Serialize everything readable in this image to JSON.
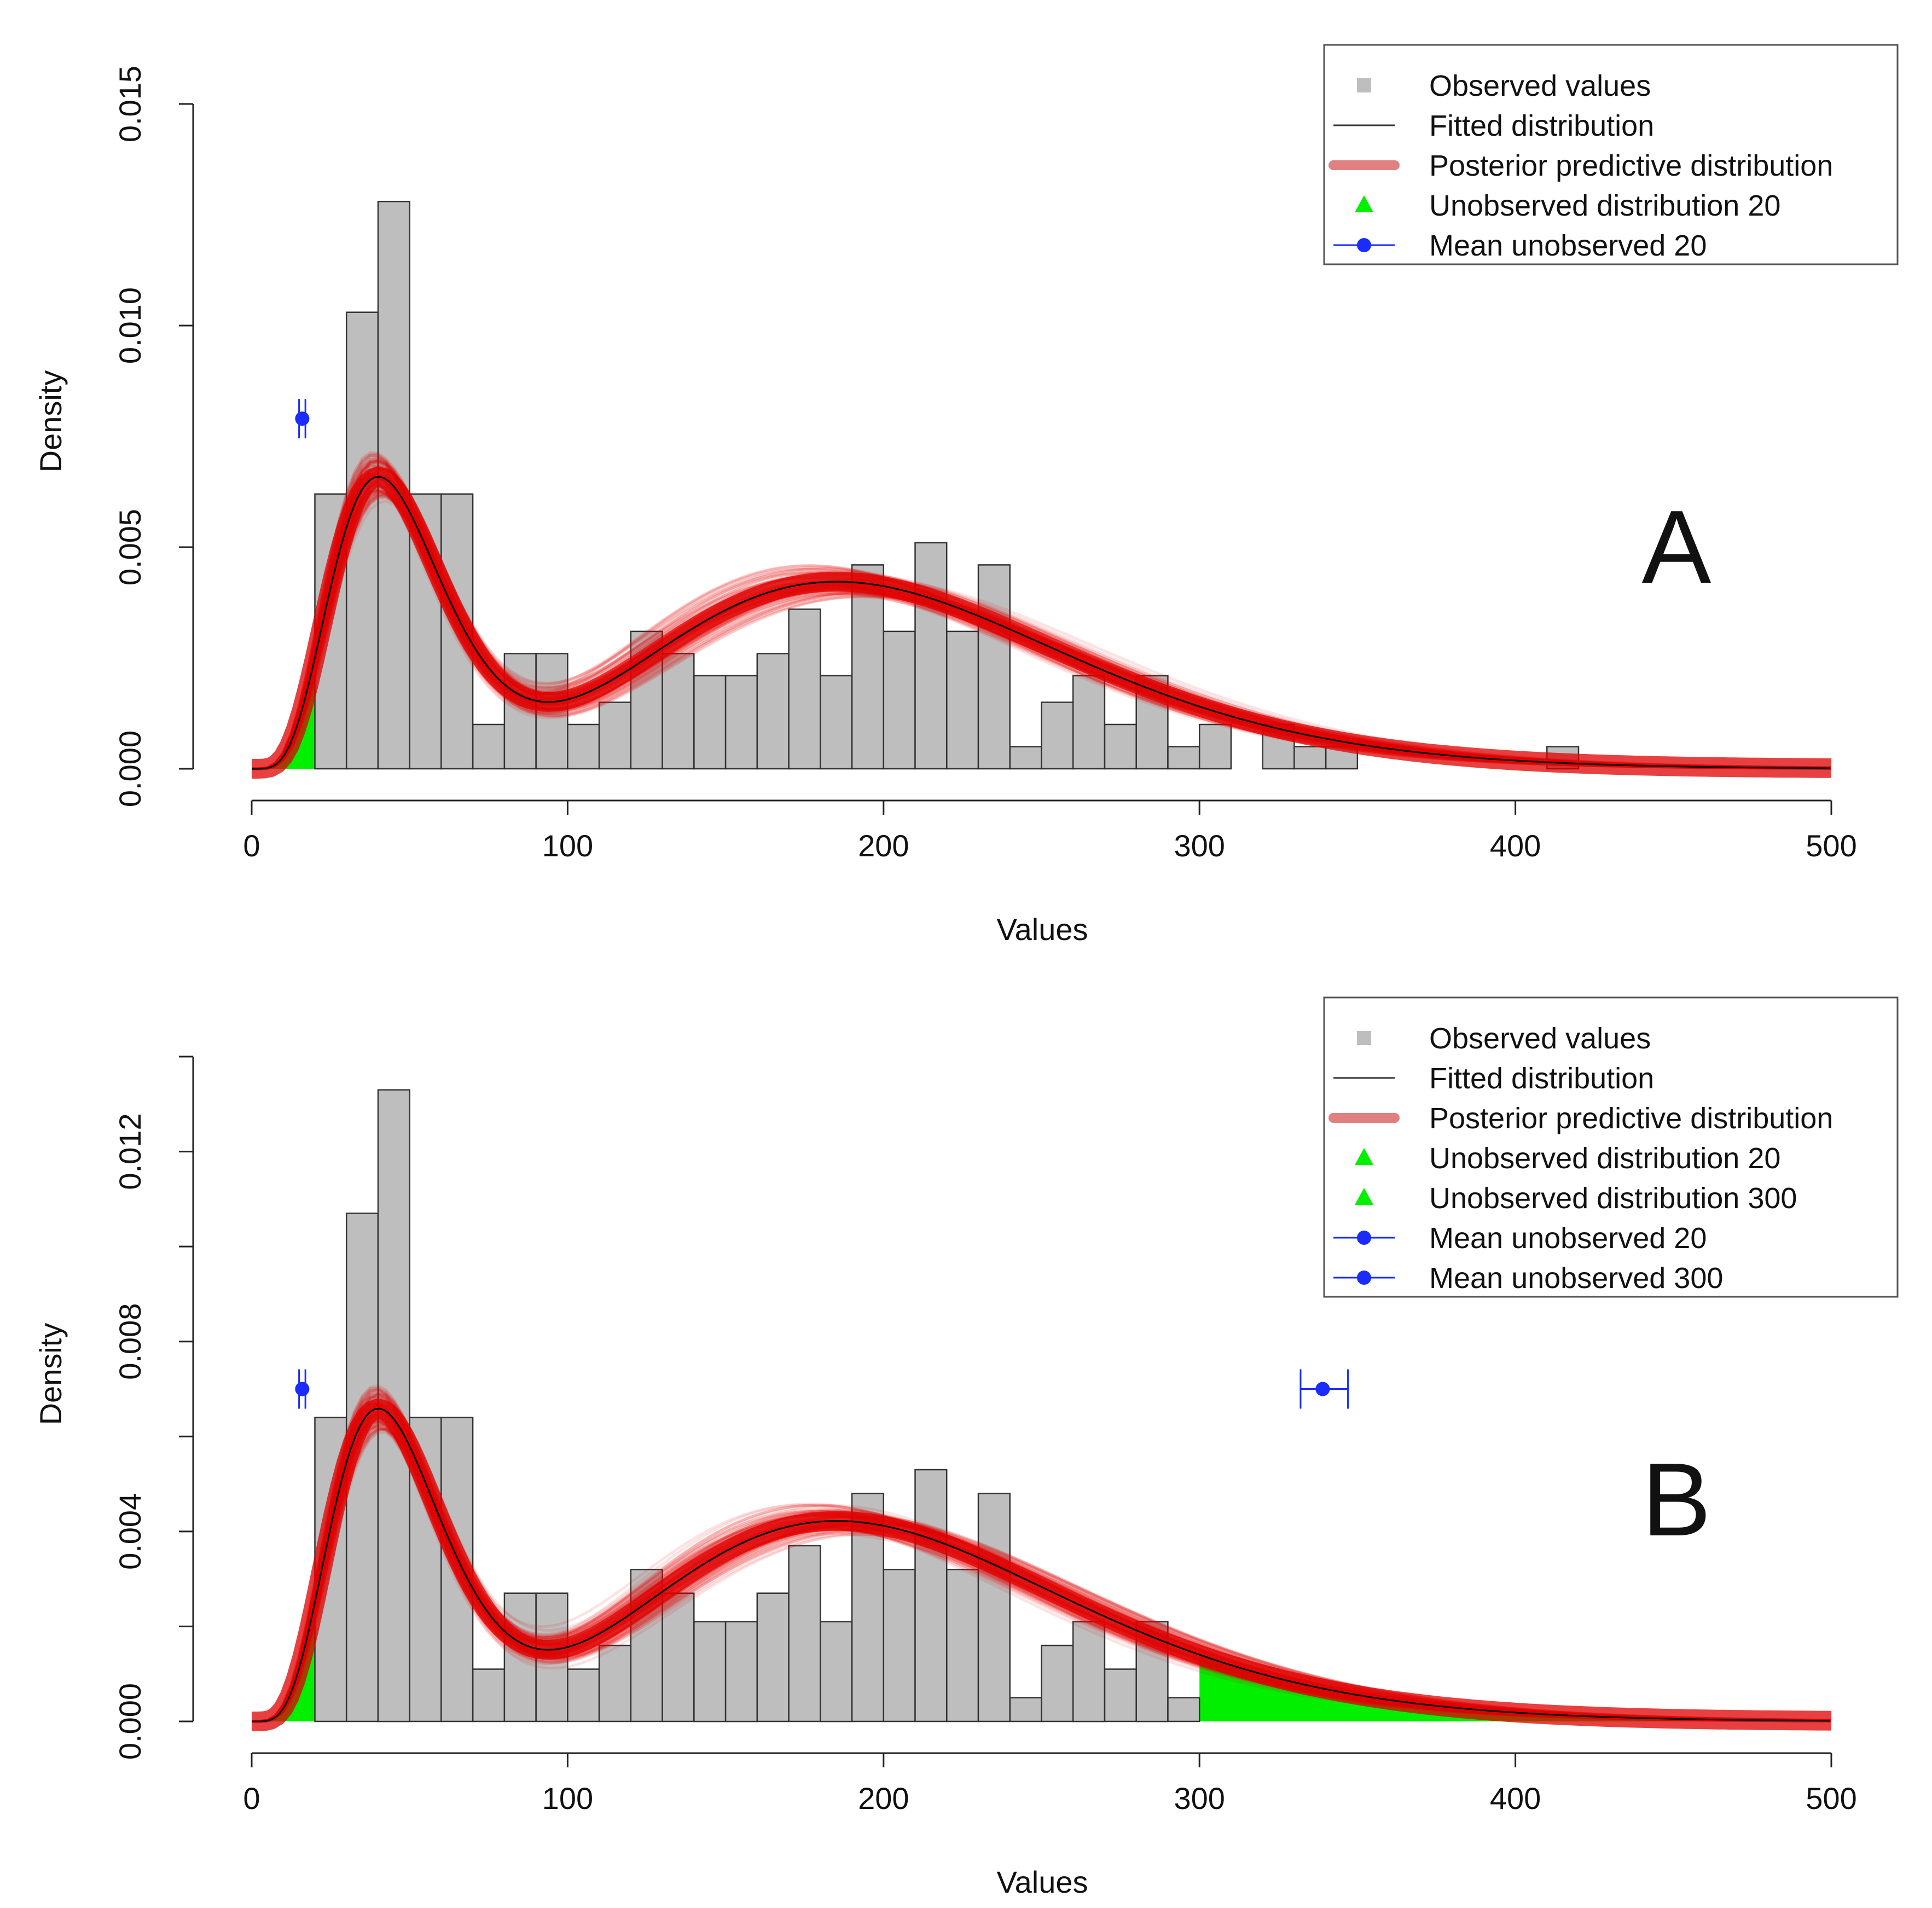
{
  "figure": {
    "colors": {
      "bar_fill": "#bebebe",
      "bar_edge": "#333333",
      "posterior": "#e00000",
      "fitted": "#000000",
      "unobserved": "#00f000",
      "mean_marker": "#1a2cff",
      "legend_posterior": "#e08080"
    },
    "panels": [
      {
        "label": "A",
        "legend": [
          {
            "label": "Observed values",
            "symbol": "square"
          },
          {
            "label": "Fitted distribution",
            "symbol": "thin-line"
          },
          {
            "label": "Posterior predictive distribution",
            "symbol": "thick-line"
          },
          {
            "label": "Unobserved distribution 20",
            "symbol": "triangle"
          },
          {
            "label": "Mean unobserved 20",
            "symbol": "point-line"
          }
        ]
      },
      {
        "label": "B",
        "legend": [
          {
            "label": "Observed values",
            "symbol": "square"
          },
          {
            "label": "Fitted distribution",
            "symbol": "thin-line"
          },
          {
            "label": "Posterior predictive distribution",
            "symbol": "thick-line"
          },
          {
            "label": "Unobserved distribution 20",
            "symbol": "triangle"
          },
          {
            "label": "Unobserved distribution 300",
            "symbol": "triangle"
          },
          {
            "label": "Mean unobserved 20",
            "symbol": "point-line"
          },
          {
            "label": "Mean unobserved 300",
            "symbol": "point-line"
          }
        ]
      }
    ]
  },
  "chart_data": [
    {
      "type": "bar",
      "panel": "A",
      "title": "",
      "xlabel": "Values",
      "ylabel": "Density",
      "xlim": [
        0,
        500
      ],
      "ylim": [
        0,
        0.015
      ],
      "xticks": [
        "0",
        "100",
        "200",
        "300",
        "400",
        "500"
      ],
      "yticks": [
        "0.000",
        "0.005",
        "0.010",
        "0.015"
      ],
      "bin_width": 10,
      "bin_start": 20,
      "histogram": [
        0.0062,
        0.0103,
        0.0128,
        0.0062,
        0.0062,
        0.001,
        0.0026,
        0.0026,
        0.001,
        0.0015,
        0.0031,
        0.0026,
        0.0021,
        0.0021,
        0.0026,
        0.0036,
        0.0021,
        0.0046,
        0.0031,
        0.0051,
        0.0031,
        0.0046,
        0.0005,
        0.0015,
        0.0021,
        0.001,
        0.0021,
        0.0005,
        0.001,
        0.0,
        0.001,
        0.0005,
        0.0005,
        0.0,
        0.0,
        0.0,
        0.0,
        0.0,
        0.0,
        0.0005
      ],
      "fitted_distribution": {
        "components": [
          {
            "weight": 0.3,
            "shape": 6.0,
            "rate": 0.125
          },
          {
            "weight": 0.7,
            "shape": 9.0,
            "rate": 0.0432
          }
        ]
      },
      "unobserved_regions": [
        [
          0,
          20
        ]
      ],
      "mean_unobserved": [
        {
          "name": "Mean unobserved 20",
          "x": 16,
          "y": 0.0079,
          "err": [
            15,
            17
          ]
        }
      ]
    },
    {
      "type": "bar",
      "panel": "B",
      "title": "",
      "xlabel": "Values",
      "ylabel": "Density",
      "xlim": [
        0,
        500
      ],
      "ylim": [
        0,
        0.014
      ],
      "xticks": [
        "0",
        "100",
        "200",
        "300",
        "400",
        "500"
      ],
      "yticks": [
        "0.000",
        "0.004",
        "0.008",
        "0.012"
      ],
      "minor_yticks": [
        0.002,
        0.006,
        0.01,
        0.014
      ],
      "bin_width": 10,
      "bin_start": 20,
      "histogram": [
        0.0064,
        0.0107,
        0.0133,
        0.0064,
        0.0064,
        0.0011,
        0.0027,
        0.0027,
        0.0011,
        0.0016,
        0.0032,
        0.0027,
        0.0021,
        0.0021,
        0.0027,
        0.0037,
        0.0021,
        0.0048,
        0.0032,
        0.0053,
        0.0032,
        0.0048,
        0.0005,
        0.0016,
        0.0021,
        0.0011,
        0.0021,
        0.0005
      ],
      "fitted_distribution": {
        "components": [
          {
            "weight": 0.3,
            "shape": 6.0,
            "rate": 0.125
          },
          {
            "weight": 0.7,
            "shape": 9.0,
            "rate": 0.0432
          }
        ]
      },
      "unobserved_regions": [
        [
          0,
          20
        ],
        [
          300,
          500
        ]
      ],
      "mean_unobserved": [
        {
          "name": "Mean unobserved 20",
          "x": 16,
          "y": 0.007,
          "err": [
            15,
            17
          ]
        },
        {
          "name": "Mean unobserved 300",
          "x": 339,
          "y": 0.007,
          "err": [
            332,
            347
          ]
        }
      ]
    }
  ]
}
